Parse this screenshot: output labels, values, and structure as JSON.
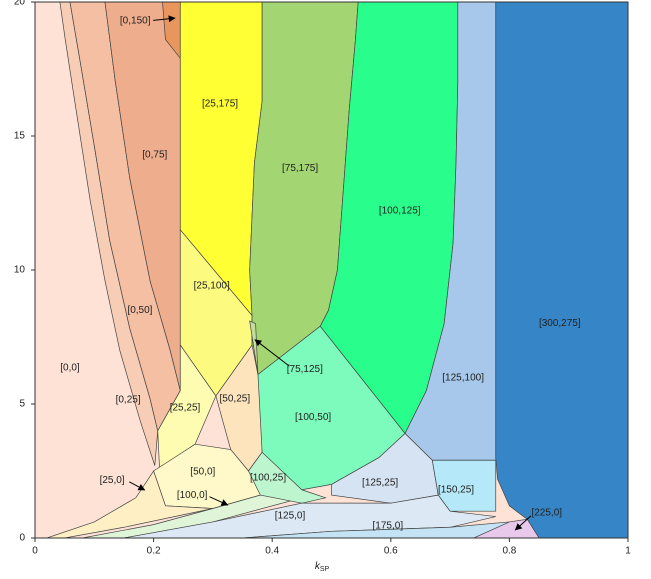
{
  "chart_data": {
    "type": "region",
    "xlabel": "k",
    "xlabel_sub": "SP",
    "xlim": [
      0,
      1
    ],
    "xticks": [
      0,
      0.2,
      0.4,
      0.6,
      0.8,
      1
    ],
    "ylim": [
      0,
      20
    ],
    "yticks": [
      0,
      5,
      10,
      15,
      20
    ],
    "regions": [
      {
        "label": "[0,0]",
        "color": "#fde2d5",
        "x": [
          0,
          1,
          1,
          0
        ],
        "y": [
          0,
          0,
          20,
          20
        ],
        "label_xy": [
          0.059,
          6.34
        ]
      },
      {
        "label": "[0,25]",
        "color": "#f8cdb6",
        "x": [
          0.042,
          0.051,
          0.067,
          0.093,
          0.118,
          0.143,
          0.177,
          0.202,
          0.207,
          0.194,
          0.16,
          0.126,
          0.101,
          0.076,
          0.059
        ],
        "y": [
          20,
          18.6,
          16.3,
          12.6,
          9.6,
          7.0,
          4.4,
          2.7,
          4.0,
          5.2,
          7.8,
          11.1,
          14.5,
          17.8,
          20
        ],
        "label_xy": [
          0.157,
          5.15
        ]
      },
      {
        "label": "[0,50]",
        "color": "#f4bfa3",
        "x": [
          0.059,
          0.076,
          0.101,
          0.126,
          0.16,
          0.194,
          0.207,
          0.245,
          0.228,
          0.194,
          0.16,
          0.135,
          0.118
        ],
        "y": [
          20,
          17.8,
          14.5,
          11.1,
          7.8,
          5.2,
          4.0,
          5.5,
          7.0,
          9.6,
          13.4,
          17.1,
          20
        ],
        "label_xy": [
          0.177,
          8.5
        ]
      },
      {
        "label": "[0,75]",
        "color": "#eeae8e",
        "x": [
          0.118,
          0.135,
          0.16,
          0.194,
          0.228,
          0.245,
          0.245
        ],
        "y": [
          20,
          17.1,
          13.4,
          9.6,
          7.0,
          5.5,
          20
        ],
        "label_xy": [
          0.202,
          14.3
        ]
      },
      {
        "label": "[0,150]",
        "color": "#e8955e",
        "x": [
          0.215,
          0.22,
          0.245,
          0.245
        ],
        "y": [
          20,
          18.6,
          17.9,
          20
        ],
        "label_xy": [
          0.169,
          19.3
        ],
        "arrow_xy": [
          0.236,
          19.4
        ]
      },
      {
        "label": "[25,175]",
        "color": "#ffff33",
        "x": [
          0.245,
          0.383,
          0.383,
          0.37,
          0.366,
          0.362,
          0.366,
          0.245
        ],
        "y": [
          20,
          20,
          16.3,
          14,
          12,
          10,
          8.3,
          11.5
        ],
        "label_xy": [
          0.312,
          16.2
        ]
      },
      {
        "label": "[25,100]",
        "color": "#fdfa80",
        "x": [
          0.245,
          0.366,
          0.366,
          0.305,
          0.245
        ],
        "y": [
          11.5,
          8.3,
          7.2,
          5.3,
          7.2
        ],
        "label_xy": [
          0.298,
          9.4
        ]
      },
      {
        "label": "[25,25]",
        "color": "#fefcb0",
        "x": [
          0.245,
          0.305,
          0.27,
          0.21,
          0.207,
          0.245
        ],
        "y": [
          7.2,
          5.3,
          3.5,
          2.6,
          4.0,
          5.5
        ],
        "label_xy": [
          0.253,
          4.85
        ]
      },
      {
        "label": "[50,25]",
        "color": "#fde4bd",
        "x": [
          0.305,
          0.366,
          0.383,
          0.383,
          0.36,
          0.33
        ],
        "y": [
          5.3,
          7.2,
          6.2,
          3.2,
          2.5,
          3.3
        ],
        "label_xy": [
          0.337,
          5.2
        ]
      },
      {
        "label": "[50,0]",
        "color": "#fff8c8",
        "x": [
          0.2,
          0.27,
          0.33,
          0.36,
          0.38,
          0.38,
          0.3,
          0.22
        ],
        "y": [
          2.5,
          3.5,
          3.3,
          2.5,
          2.2,
          1.6,
          1.1,
          1.2
        ],
        "label_xy": [
          0.283,
          2.46
        ]
      },
      {
        "label": "[25,0]",
        "color": "#fef0c4",
        "x": [
          0.02,
          0.1,
          0.17,
          0.2,
          0.22,
          0.3,
          0.15,
          0.05
        ],
        "y": [
          0,
          0.6,
          1.5,
          2.5,
          1.2,
          1.1,
          0.4,
          0
        ],
        "label_xy": [
          0.13,
          2.16
        ],
        "arrow_xy": [
          0.185,
          1.79
        ]
      },
      {
        "label": "[100,0]",
        "color": "#e0f5d8",
        "x": [
          0.08,
          0.2,
          0.3,
          0.38,
          0.45,
          0.45,
          0.3,
          0.15
        ],
        "y": [
          0,
          0.5,
          1.1,
          1.6,
          1.8,
          1.5,
          0.6,
          0
        ],
        "label_xy": [
          0.265,
          1.6
        ],
        "arrow_xy": [
          0.325,
          1.23
        ]
      },
      {
        "label": "[75,175]",
        "color": "#a3d672",
        "x": [
          0.383,
          0.545,
          0.54,
          0.53,
          0.52,
          0.51,
          0.495,
          0.481,
          0.376,
          0.366,
          0.366,
          0.362,
          0.366,
          0.37,
          0.383
        ],
        "y": [
          20,
          20,
          18.5,
          16,
          13,
          10,
          8.5,
          7.9,
          6.1,
          7.2,
          8.3,
          10,
          12,
          14,
          16.3
        ],
        "label_xy": [
          0.447,
          13.8
        ]
      },
      {
        "label": "[75,125]",
        "color": "#c5dd9a",
        "x": [
          0.362,
          0.376,
          0.372
        ],
        "y": [
          8.1,
          6.1,
          8.0
        ],
        "label_xy": [
          0.455,
          6.3
        ],
        "arrow_xy": [
          0.371,
          7.4
        ]
      },
      {
        "label": "[100,125]",
        "color": "#29fe8c",
        "x": [
          0.545,
          0.713,
          0.713,
          0.71,
          0.705,
          0.69,
          0.66,
          0.624,
          0.481,
          0.495,
          0.51,
          0.52,
          0.53,
          0.54
        ],
        "y": [
          20,
          20,
          17,
          14,
          11,
          8,
          5.5,
          3.9,
          7.9,
          8.5,
          10,
          13,
          16,
          18.5
        ],
        "label_xy": [
          0.615,
          12.2
        ]
      },
      {
        "label": "[100,50]",
        "color": "#7dfbbd",
        "x": [
          0.376,
          0.481,
          0.624,
          0.58,
          0.5,
          0.45,
          0.39,
          0.383
        ],
        "y": [
          6.1,
          7.9,
          3.9,
          3.0,
          2.0,
          1.8,
          2.2,
          3.2
        ],
        "label_xy": [
          0.469,
          4.5
        ]
      },
      {
        "label": "[100,25]",
        "color": "#bdf5cf",
        "x": [
          0.36,
          0.383,
          0.45,
          0.49,
          0.45,
          0.38
        ],
        "y": [
          2.5,
          3.2,
          1.8,
          1.5,
          1.3,
          1.6
        ],
        "label_xy": [
          0.393,
          2.24
        ]
      },
      {
        "label": "[125,100]",
        "color": "#a7c8ea",
        "x": [
          0.713,
          0.777,
          0.777,
          0.67,
          0.624,
          0.66,
          0.69,
          0.705,
          0.71,
          0.713
        ],
        "y": [
          20,
          20,
          2.9,
          2.9,
          3.9,
          5.5,
          8,
          11,
          14,
          17
        ],
        "label_xy": [
          0.722,
          5.97
        ]
      },
      {
        "label": "[125,25]",
        "color": "#d6e3f2",
        "x": [
          0.58,
          0.624,
          0.67,
          0.68,
          0.6,
          0.5,
          0.5
        ],
        "y": [
          3.0,
          3.9,
          2.9,
          1.6,
          1.3,
          1.6,
          2.0
        ],
        "label_xy": [
          0.582,
          2.05
        ]
      },
      {
        "label": "[150,25]",
        "color": "#b5e8f8",
        "x": [
          0.67,
          0.777,
          0.777,
          0.7,
          0.68
        ],
        "y": [
          2.9,
          2.9,
          1.0,
          1.0,
          1.6
        ],
        "label_xy": [
          0.71,
          1.79
        ]
      },
      {
        "label": "[125,0]",
        "color": "#dce9f5",
        "x": [
          0.15,
          0.3,
          0.45,
          0.6,
          0.68,
          0.7,
          0.777,
          0.7,
          0.5,
          0.35
        ],
        "y": [
          0,
          0.6,
          1.3,
          1.3,
          1.6,
          1.0,
          0.8,
          0.4,
          0.25,
          0
        ],
        "label_xy": [
          0.43,
          0.82
        ]
      },
      {
        "label": "[175,0]",
        "color": "#c4e4f6",
        "x": [
          0.35,
          0.5,
          0.7,
          0.8,
          0.8
        ],
        "y": [
          0,
          0.25,
          0.4,
          0.6,
          0
        ],
        "label_xy": [
          0.595,
          0.45
        ]
      },
      {
        "label": "[300,275]",
        "color": "#3585c7",
        "x": [
          0.777,
          1,
          1,
          0.85,
          0.83,
          0.8,
          0.78,
          0.777
        ],
        "y": [
          20,
          20,
          0,
          0,
          0.7,
          1.2,
          2.2,
          3
        ],
        "label_xy": [
          0.885,
          8.0
        ]
      },
      {
        "label": "[225,0]",
        "color": "#e8c9ec",
        "x": [
          0.74,
          0.8,
          0.83,
          0.85
        ],
        "y": [
          0,
          0.6,
          0.7,
          0
        ],
        "label_xy": [
          0.863,
          0.93
        ],
        "arrow_xy": [
          0.81,
          0.3
        ]
      }
    ]
  }
}
